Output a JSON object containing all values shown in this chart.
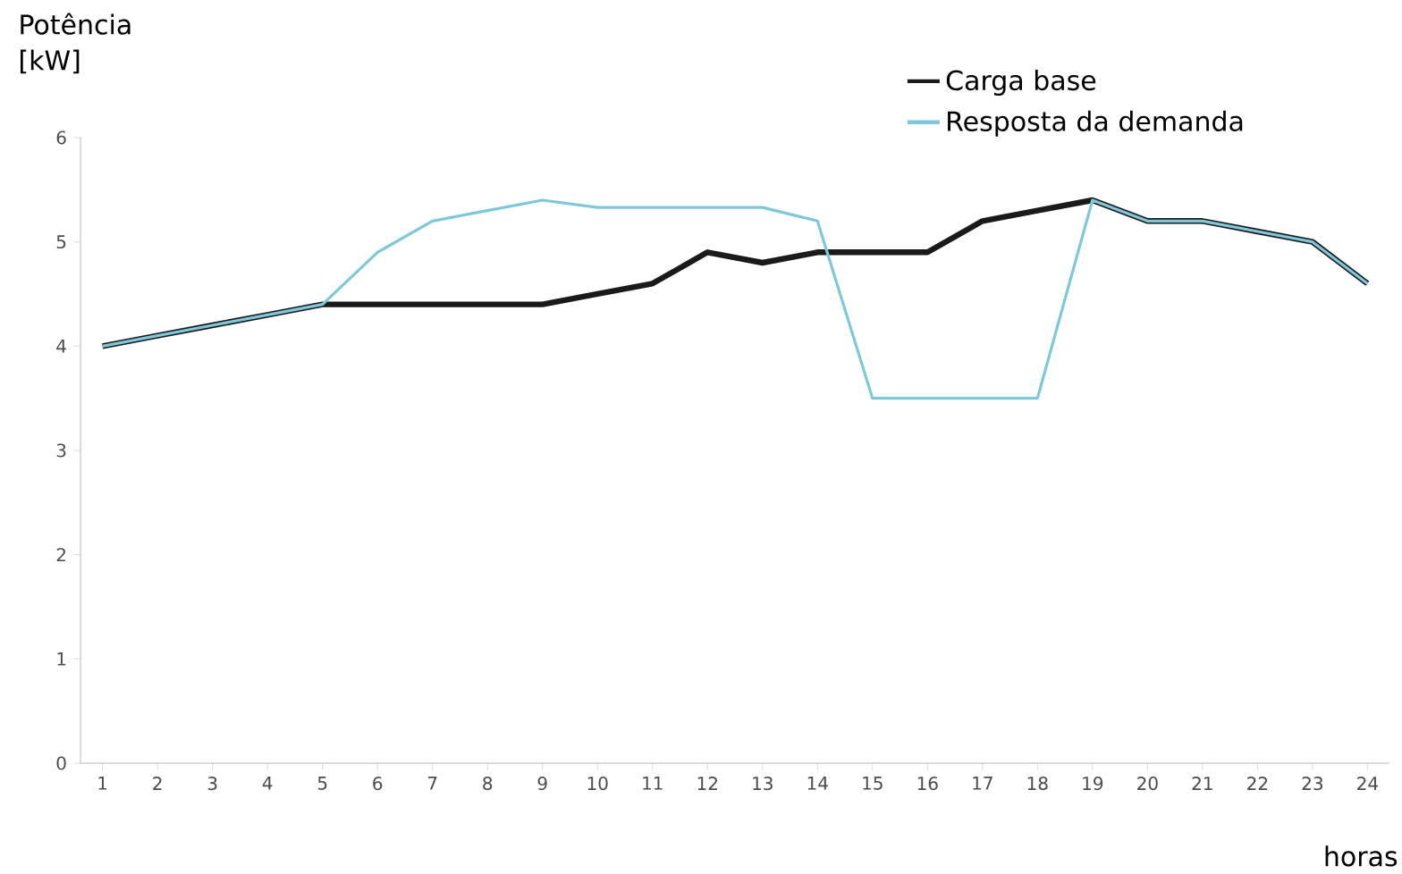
{
  "chart_data": {
    "type": "line",
    "xlabel": "horas",
    "ylabel": "Potência [kW]",
    "categories": [
      "1",
      "2",
      "3",
      "4",
      "5",
      "6",
      "7",
      "8",
      "9",
      "10",
      "11",
      "12",
      "13",
      "14",
      "15",
      "16",
      "17",
      "18",
      "19",
      "20",
      "21",
      "22",
      "23",
      "24"
    ],
    "series": [
      {
        "name": "Carga base",
        "color": "#1a1a1a",
        "values": [
          4.0,
          4.1,
          4.2,
          4.3,
          4.4,
          4.4,
          4.4,
          4.4,
          4.4,
          4.5,
          4.6,
          4.9,
          4.8,
          4.9,
          4.9,
          4.9,
          5.2,
          5.3,
          5.4,
          5.2,
          5.2,
          5.1,
          5.0,
          4.6
        ]
      },
      {
        "name": "Resposta da demanda",
        "color": "#7ec8dc",
        "values": [
          4.0,
          4.1,
          4.2,
          4.3,
          4.4,
          4.9,
          5.2,
          5.3,
          5.4,
          5.33,
          5.33,
          5.33,
          5.33,
          5.2,
          3.5,
          3.5,
          3.5,
          3.5,
          5.4,
          5.2,
          5.2,
          5.1,
          5.0,
          4.6
        ]
      }
    ],
    "ylim": [
      0,
      6
    ],
    "yticks": [
      0,
      1,
      2,
      3,
      4,
      5,
      6
    ],
    "grid": false,
    "legend": "top right",
    "marker": "none",
    "line_style": "solid"
  }
}
